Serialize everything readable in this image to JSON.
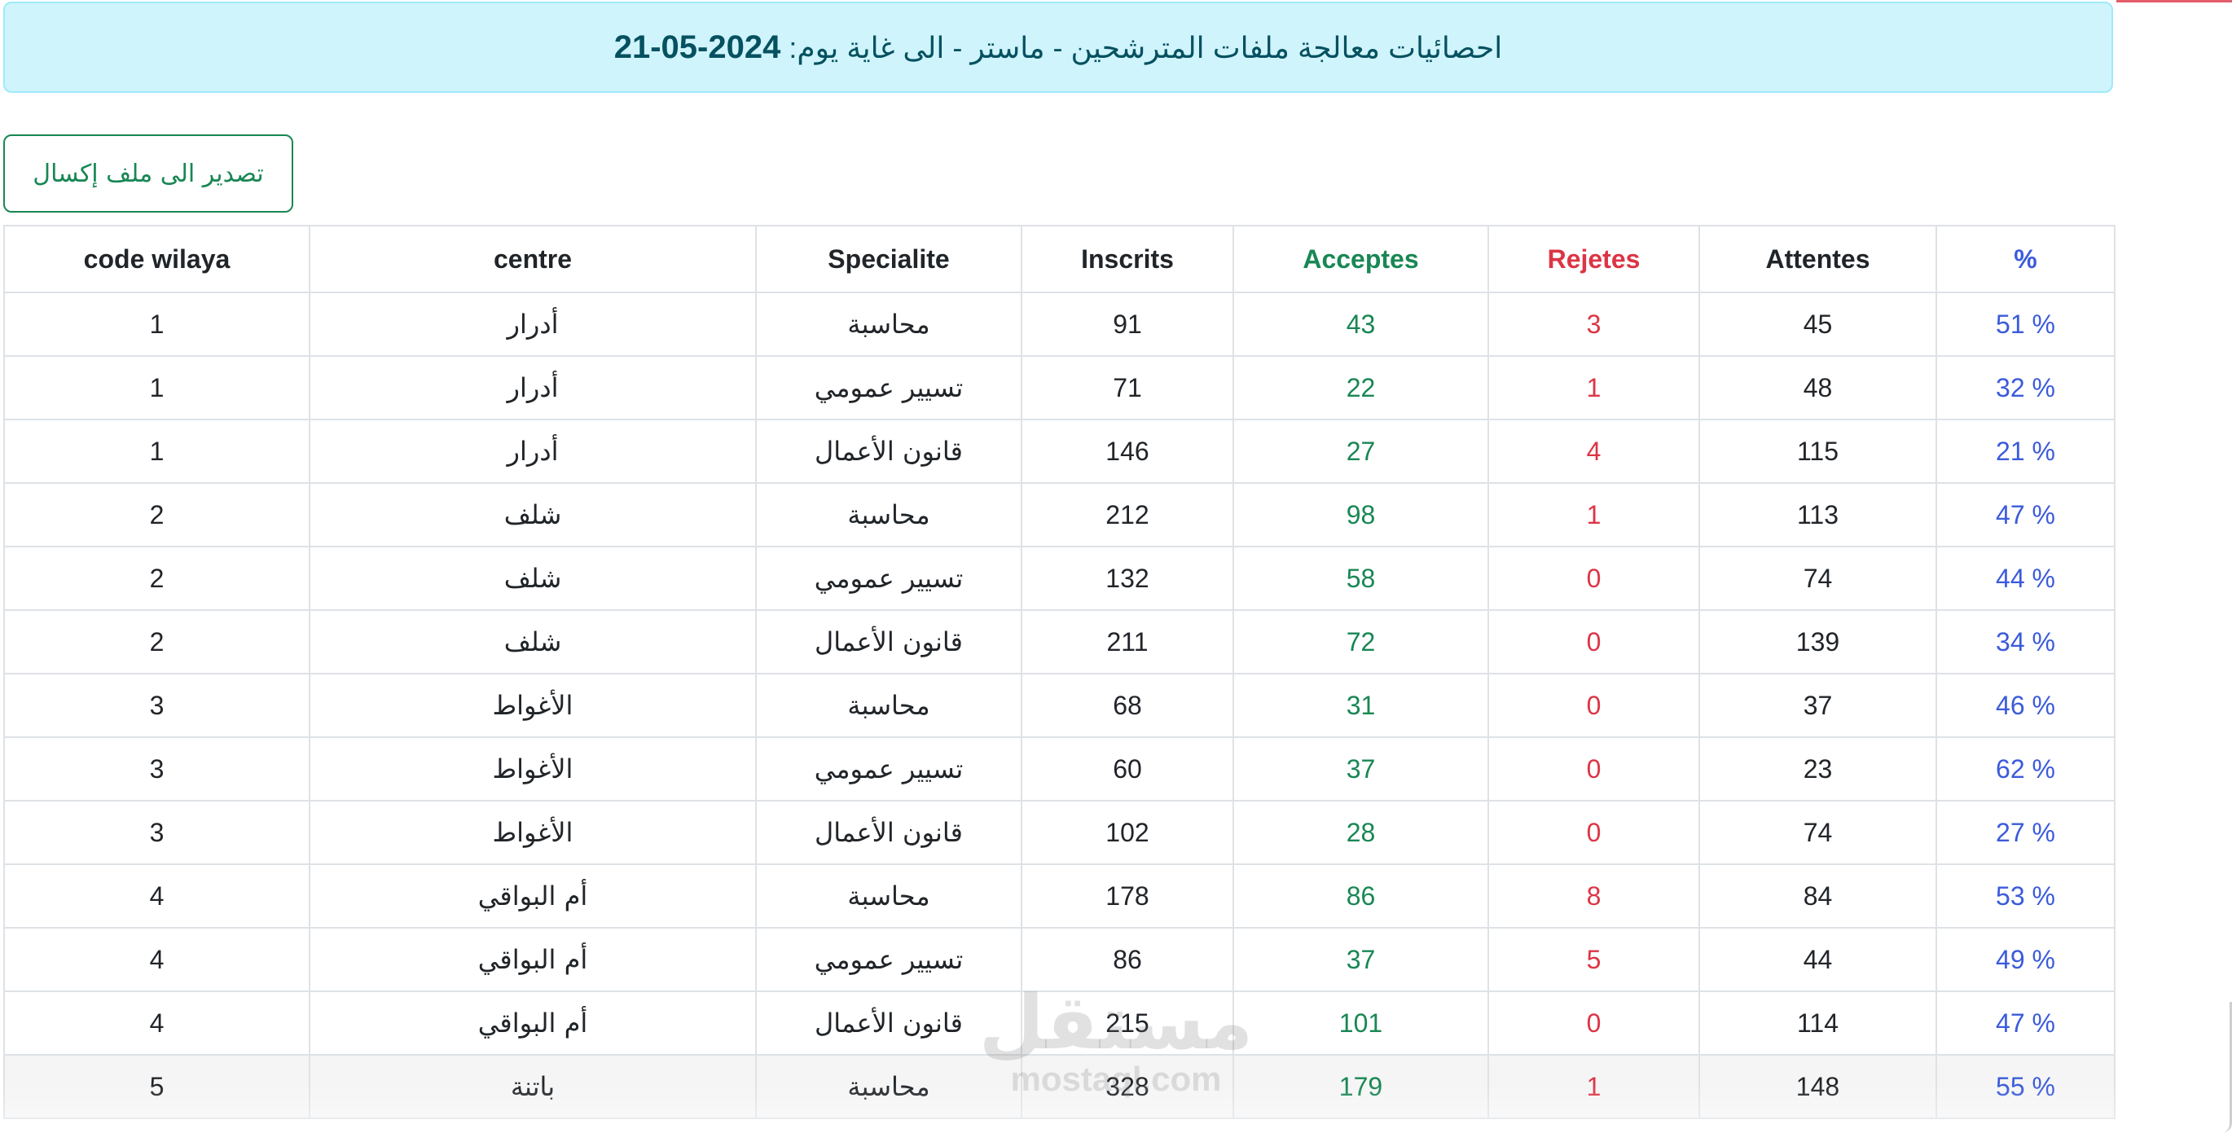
{
  "header": {
    "title_text": "احصائيات معالجة ملفات المترشحين - ماستر - الى غاية يوم:",
    "date": "2024-05-21"
  },
  "export_button": {
    "label": "تصدير الى ملف إكسال"
  },
  "table": {
    "headers": {
      "code_wilaya": "code wilaya",
      "centre": "centre",
      "specialite": "Specialite",
      "inscrits": "Inscrits",
      "acceptes": "Acceptes",
      "rejetes": "Rejetes",
      "attentes": "Attentes",
      "percent": "%"
    },
    "rows": [
      {
        "code": "1",
        "centre": "أدرار",
        "specialite": "محاسبة",
        "inscrits": "91",
        "acceptes": "43",
        "rejetes": "3",
        "attentes": "45",
        "percent": "51 %"
      },
      {
        "code": "1",
        "centre": "أدرار",
        "specialite": "تسيير عمومي",
        "inscrits": "71",
        "acceptes": "22",
        "rejetes": "1",
        "attentes": "48",
        "percent": "32 %"
      },
      {
        "code": "1",
        "centre": "أدرار",
        "specialite": "قانون الأعمال",
        "inscrits": "146",
        "acceptes": "27",
        "rejetes": "4",
        "attentes": "115",
        "percent": "21 %"
      },
      {
        "code": "2",
        "centre": "شلف",
        "specialite": "محاسبة",
        "inscrits": "212",
        "acceptes": "98",
        "rejetes": "1",
        "attentes": "113",
        "percent": "47 %"
      },
      {
        "code": "2",
        "centre": "شلف",
        "specialite": "تسيير عمومي",
        "inscrits": "132",
        "acceptes": "58",
        "rejetes": "0",
        "attentes": "74",
        "percent": "44 %"
      },
      {
        "code": "2",
        "centre": "شلف",
        "specialite": "قانون الأعمال",
        "inscrits": "211",
        "acceptes": "72",
        "rejetes": "0",
        "attentes": "139",
        "percent": "34 %"
      },
      {
        "code": "3",
        "centre": "الأغواط",
        "specialite": "محاسبة",
        "inscrits": "68",
        "acceptes": "31",
        "rejetes": "0",
        "attentes": "37",
        "percent": "46 %"
      },
      {
        "code": "3",
        "centre": "الأغواط",
        "specialite": "تسيير عمومي",
        "inscrits": "60",
        "acceptes": "37",
        "rejetes": "0",
        "attentes": "23",
        "percent": "62 %"
      },
      {
        "code": "3",
        "centre": "الأغواط",
        "specialite": "قانون الأعمال",
        "inscrits": "102",
        "acceptes": "28",
        "rejetes": "0",
        "attentes": "74",
        "percent": "27 %"
      },
      {
        "code": "4",
        "centre": "أم البواقي",
        "specialite": "محاسبة",
        "inscrits": "178",
        "acceptes": "86",
        "rejetes": "8",
        "attentes": "84",
        "percent": "53 %"
      },
      {
        "code": "4",
        "centre": "أم البواقي",
        "specialite": "تسيير عمومي",
        "inscrits": "86",
        "acceptes": "37",
        "rejetes": "5",
        "attentes": "44",
        "percent": "49 %"
      },
      {
        "code": "4",
        "centre": "أم البواقي",
        "specialite": "قانون الأعمال",
        "inscrits": "215",
        "acceptes": "101",
        "rejetes": "0",
        "attentes": "114",
        "percent": "47 %"
      },
      {
        "code": "5",
        "centre": "باتنة",
        "specialite": "محاسبة",
        "inscrits": "328",
        "acceptes": "179",
        "rejetes": "1",
        "attentes": "148",
        "percent": "55 %"
      }
    ]
  },
  "watermark": {
    "arabic": "مستقل",
    "latin": "mostaql.com"
  },
  "colors": {
    "header_bg": "#cff4fc",
    "header_border": "#9eeaf9",
    "header_text": "#055160",
    "accepted": "#198754",
    "rejected": "#dc3545",
    "percent": "#3b5bdb"
  }
}
